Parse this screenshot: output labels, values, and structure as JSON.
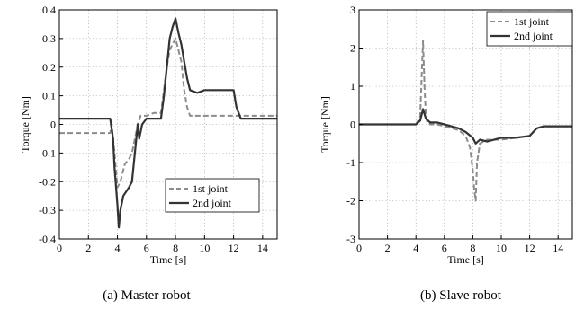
{
  "chart_data": [
    {
      "type": "line",
      "caption": "(a) Master robot",
      "xlabel": "Time [s]",
      "ylabel": "Torque [Nm]",
      "xlim": [
        0,
        15
      ],
      "ylim": [
        -0.4,
        0.4
      ],
      "xticks": [
        0,
        2,
        4,
        6,
        8,
        10,
        12,
        14
      ],
      "yticks": [
        -0.4,
        -0.3,
        -0.2,
        -0.1,
        0,
        0.1,
        0.2,
        0.3,
        0.4
      ],
      "xtick_labels": [
        "0",
        "2",
        "4",
        "6",
        "8",
        "10",
        "12",
        "14"
      ],
      "ytick_labels": [
        "-0.4",
        "-0.3",
        "-0.2",
        "-0.1",
        "0",
        "0.1",
        "0.2",
        "0.3",
        "0.4"
      ],
      "grid": true,
      "legend_position": "lower-right",
      "series": [
        {
          "name": "1st joint",
          "color": "#8c8c8c",
          "dash": "dashed",
          "x": [
            0,
            3.5,
            3.6,
            3.8,
            4.0,
            4.2,
            4.5,
            4.8,
            5.0,
            5.2,
            5.4,
            5.6,
            6.0,
            6.5,
            7.0,
            7.2,
            7.4,
            7.6,
            7.8,
            8.0,
            8.2,
            8.4,
            8.6,
            8.8,
            9.0,
            9.5,
            10.0,
            11.0,
            12.0,
            12.5,
            13.0,
            14.0,
            15.0
          ],
          "y": [
            -0.03,
            -0.03,
            0.0,
            -0.1,
            -0.22,
            -0.2,
            -0.14,
            -0.12,
            -0.1,
            -0.05,
            0.0,
            0.03,
            0.03,
            0.04,
            0.04,
            0.12,
            0.2,
            0.26,
            0.28,
            0.3,
            0.26,
            0.22,
            0.12,
            0.06,
            0.03,
            0.03,
            0.03,
            0.03,
            0.03,
            0.03,
            0.03,
            0.03,
            0.03
          ]
        },
        {
          "name": "2nd joint",
          "color": "#333333",
          "dash": "solid",
          "x": [
            0,
            3.0,
            3.5,
            3.7,
            3.8,
            4.0,
            4.1,
            4.2,
            4.4,
            4.8,
            5.0,
            5.2,
            5.4,
            5.5,
            5.7,
            6.0,
            6.5,
            7.0,
            7.2,
            7.4,
            7.6,
            7.8,
            8.0,
            8.2,
            8.4,
            8.6,
            8.8,
            9.0,
            9.5,
            10.0,
            11.0,
            12.0,
            12.2,
            12.5,
            13.0,
            14.0,
            15.0
          ],
          "y": [
            0.02,
            0.02,
            0.02,
            -0.05,
            -0.15,
            -0.28,
            -0.36,
            -0.3,
            -0.25,
            -0.22,
            -0.2,
            -0.1,
            0.0,
            -0.05,
            0.0,
            0.02,
            0.02,
            0.02,
            0.1,
            0.2,
            0.3,
            0.34,
            0.37,
            0.32,
            0.28,
            0.22,
            0.16,
            0.12,
            0.11,
            0.12,
            0.12,
            0.12,
            0.06,
            0.02,
            0.02,
            0.02,
            0.02
          ]
        }
      ]
    },
    {
      "type": "line",
      "caption": "(b) Slave robot",
      "xlabel": "Time [s]",
      "ylabel": "Torque [Nm]",
      "xlim": [
        0,
        15
      ],
      "ylim": [
        -3,
        3
      ],
      "xticks": [
        0,
        2,
        4,
        6,
        8,
        10,
        12,
        14
      ],
      "yticks": [
        -3,
        -2,
        -1,
        0,
        1,
        2,
        3
      ],
      "xtick_labels": [
        "0",
        "2",
        "4",
        "6",
        "8",
        "10",
        "12",
        "14"
      ],
      "ytick_labels": [
        "-3",
        "-2",
        "-1",
        "0",
        "1",
        "2",
        "3"
      ],
      "grid": true,
      "legend_position": "top-right",
      "series": [
        {
          "name": "1st joint",
          "color": "#8c8c8c",
          "dash": "dashed",
          "x": [
            0,
            4.0,
            4.3,
            4.4,
            4.5,
            4.6,
            4.7,
            4.8,
            5.0,
            5.5,
            6.0,
            7.0,
            7.5,
            7.8,
            8.0,
            8.1,
            8.2,
            8.3,
            8.5,
            9.0,
            10.0,
            11.0,
            12.0,
            12.5,
            13.0,
            14.0,
            15.0
          ],
          "y": [
            0.0,
            0.0,
            0.2,
            1.2,
            2.2,
            1.0,
            0.2,
            0.05,
            0.0,
            0.0,
            -0.05,
            -0.15,
            -0.3,
            -0.6,
            -1.2,
            -1.7,
            -2.0,
            -1.0,
            -0.5,
            -0.4,
            -0.4,
            -0.35,
            -0.3,
            -0.1,
            -0.05,
            -0.05,
            -0.05
          ]
        },
        {
          "name": "2nd joint",
          "color": "#333333",
          "dash": "solid",
          "x": [
            0,
            4.0,
            4.3,
            4.5,
            4.7,
            5.0,
            5.5,
            6.0,
            7.0,
            7.5,
            8.0,
            8.2,
            8.5,
            9.0,
            10.0,
            11.0,
            12.0,
            12.5,
            13.0,
            14.0,
            15.0
          ],
          "y": [
            0.0,
            0.0,
            0.1,
            0.4,
            0.15,
            0.05,
            0.05,
            0.0,
            -0.1,
            -0.2,
            -0.35,
            -0.5,
            -0.4,
            -0.45,
            -0.35,
            -0.35,
            -0.3,
            -0.1,
            -0.05,
            -0.05,
            -0.05
          ]
        }
      ]
    }
  ]
}
